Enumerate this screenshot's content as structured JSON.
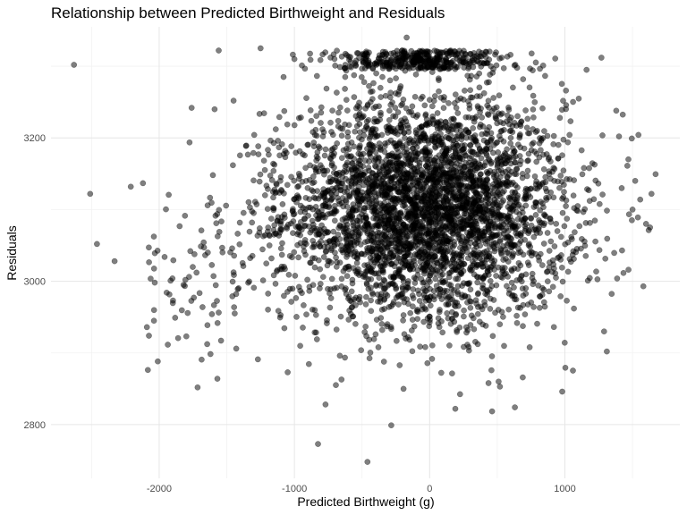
{
  "chart_data": {
    "type": "scatter",
    "title": "Relationship between Predicted Birthweight and Residuals",
    "xlabel": "Predicted Birthweight (g)",
    "ylabel": "Residuals",
    "xlim": [
      -2800,
      1850
    ],
    "ylim": [
      2725,
      3355
    ],
    "x_ticks": [
      -2000,
      -1000,
      0,
      1000
    ],
    "x_tick_labels": [
      "-2000",
      "-1000",
      "0",
      "1000"
    ],
    "y_ticks": [
      2800,
      3000,
      3200
    ],
    "y_tick_labels": [
      "2800",
      "3000",
      "3200"
    ],
    "x_minor_ticks": [
      -2500,
      -1500,
      -500,
      500,
      1500
    ],
    "y_minor_ticks": [
      2900,
      3100,
      3300
    ],
    "grid": true,
    "point_color": "#000000",
    "point_alpha": 0.5,
    "n_points_approx": 4300,
    "points": [
      {
        "x": -2630,
        "y": 3302
      },
      {
        "x": -1560,
        "y": 3322
      },
      {
        "x": -1250,
        "y": 3325
      },
      {
        "x": -170,
        "y": 3340
      },
      {
        "x": 1270,
        "y": 3312
      },
      {
        "x": 1380,
        "y": 3238
      },
      {
        "x": 1520,
        "y": 3140
      },
      {
        "x": 1640,
        "y": 3122
      },
      {
        "x": 1600,
        "y": 3080
      },
      {
        "x": 1630,
        "y": 3075
      },
      {
        "x": 1500,
        "y": 3100
      },
      {
        "x": 1470,
        "y": 3016
      },
      {
        "x": 1580,
        "y": 2993
      },
      {
        "x": 1290,
        "y": 2930
      },
      {
        "x": 1310,
        "y": 2902
      },
      {
        "x": 980,
        "y": 2846
      },
      {
        "x": 630,
        "y": 2824
      },
      {
        "x": 520,
        "y": 2853
      },
      {
        "x": 510,
        "y": 2860
      },
      {
        "x": 190,
        "y": 2822
      },
      {
        "x": -460,
        "y": 2748
      },
      {
        "x": -770,
        "y": 2828
      },
      {
        "x": -1050,
        "y": 2873
      },
      {
        "x": -1270,
        "y": 2891
      },
      {
        "x": -1430,
        "y": 2906
      },
      {
        "x": -1610,
        "y": 2954
      },
      {
        "x": -1820,
        "y": 2995
      },
      {
        "x": -2330,
        "y": 3028
      },
      {
        "x": -2460,
        "y": 3052
      },
      {
        "x": -2510,
        "y": 3122
      },
      {
        "x": -2210,
        "y": 3132
      },
      {
        "x": -1760,
        "y": 3242
      },
      {
        "x": -1590,
        "y": 3240
      },
      {
        "x": -1450,
        "y": 3252
      },
      {
        "x": -1000,
        "y": 3310
      },
      {
        "x": -1080,
        "y": 3285
      },
      {
        "x": 1160,
        "y": 3295
      },
      {
        "x": 1400,
        "y": 3202
      },
      {
        "x": 1420,
        "y": 3130
      }
    ]
  }
}
